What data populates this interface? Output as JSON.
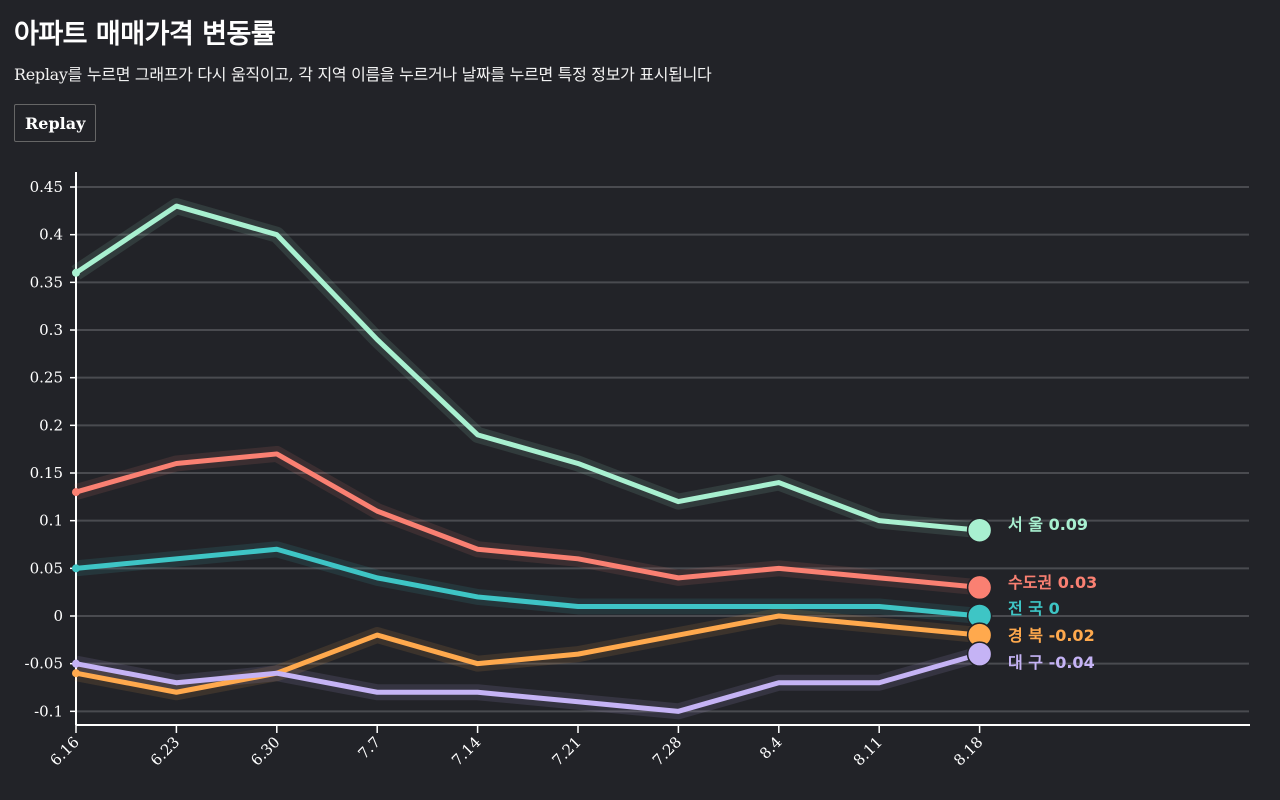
{
  "header": {
    "title": "아파트 매매가격 변동률",
    "subtitle": "Replay를 누르면 그래프가 다시 움직이고, 각 지역 이름을 누르거나 날짜를 누르면 특정 정보가 표시됩니다",
    "replay_label": "Replay"
  },
  "chart_data": {
    "type": "line",
    "title": "아파트 매매가격 변동률",
    "xlabel": "",
    "ylabel": "",
    "x": [
      "6.16",
      "6.23",
      "6.30",
      "7.7",
      "7.14",
      "7.21",
      "7.28",
      "8.4",
      "8.11",
      "8.18"
    ],
    "y_ticks": [
      -0.1,
      -0.05,
      0,
      0.05,
      0.1,
      0.15,
      0.2,
      0.25,
      0.3,
      0.35,
      0.4,
      0.45
    ],
    "y_tick_labels": [
      "-0.1",
      "-0.05",
      "0",
      "0.05",
      "0.1",
      "0.15",
      "0.2",
      "0.25",
      "0.3",
      "0.35",
      "0.4",
      "0.45"
    ],
    "ylim": [
      -0.115,
      0.465
    ],
    "grid": true,
    "legend": "end-of-line labels (right)",
    "series": [
      {
        "name": "서 울",
        "color": "#a8f0d0",
        "last_label": "0.09",
        "values": [
          0.36,
          0.43,
          0.4,
          0.29,
          0.19,
          0.16,
          0.12,
          0.14,
          0.1,
          0.09
        ]
      },
      {
        "name": "수도권",
        "color": "#fa8072",
        "last_label": "0.03",
        "values": [
          0.13,
          0.16,
          0.17,
          0.11,
          0.07,
          0.06,
          0.04,
          0.05,
          0.04,
          0.03
        ]
      },
      {
        "name": "전 국",
        "color": "#3ec5c5",
        "last_label": "0",
        "values": [
          0.05,
          0.06,
          0.07,
          0.04,
          0.02,
          0.01,
          0.01,
          0.01,
          0.01,
          0.0
        ]
      },
      {
        "name": "경 북",
        "color": "#ffa94d",
        "last_label": "-0.02",
        "values": [
          -0.06,
          -0.08,
          -0.06,
          -0.02,
          -0.05,
          -0.04,
          -0.02,
          0.0,
          -0.01,
          -0.02
        ]
      },
      {
        "name": "대 구",
        "color": "#c5b3f5",
        "last_label": "-0.04",
        "values": [
          -0.05,
          -0.07,
          -0.06,
          -0.08,
          -0.08,
          -0.09,
          -0.1,
          -0.07,
          -0.07,
          -0.04
        ]
      }
    ]
  }
}
